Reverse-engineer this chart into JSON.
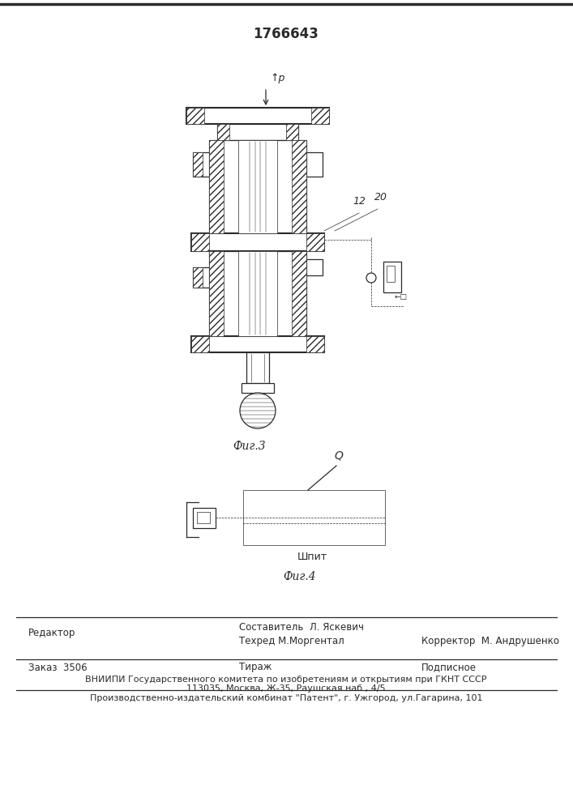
{
  "patent_number": "1766643",
  "fig3_label": "Фиг.3",
  "fig4_label": "Фиг.4",
  "bg_color": "#ffffff",
  "line_color": "#2a2a2a",
  "footer_line1_left": "Редактор",
  "footer_sestavitel": "Составитель  Л. Яскевич",
  "footer_tehred": "Техред М.Моргентал",
  "footer_korrektor": "Корректор  М. Андрушенко",
  "footer_zakaz": "Заказ  3506",
  "footer_tirazh": "Тираж",
  "footer_podpisnoe": "Подписное",
  "footer_vniipii": "ВНИИПИ Государственного комитета по изобретениям и открытиям при ГКНТ СССР",
  "footer_address": "113035, Москва, Ж-35, Раушская наб., 4/5",
  "footer_proizv": "Производственно-издательский комбинат \"Патент\", г. Ужгород, ул.Гагарина, 101",
  "label_p": "↑p",
  "label_12": "12",
  "label_20": "20",
  "label_shpit": "Шпит",
  "label_Q": "Q"
}
